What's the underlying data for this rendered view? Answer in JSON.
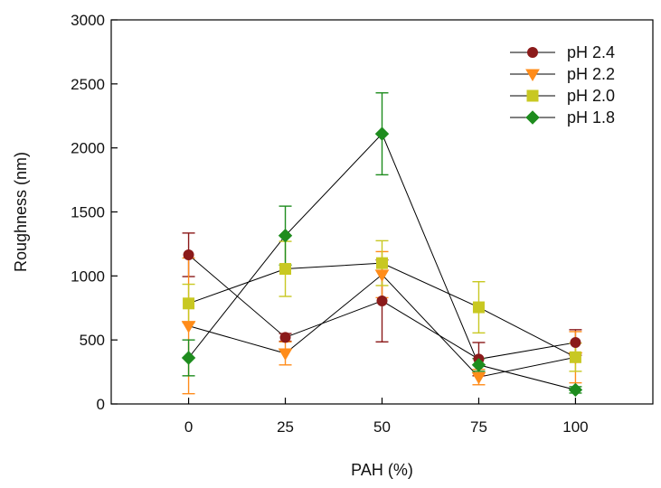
{
  "chart_data": {
    "type": "line",
    "title": "",
    "xlabel": "PAH (%)",
    "ylabel": "Roughness (nm)",
    "x": [
      0,
      25,
      50,
      75,
      100
    ],
    "xlim": [
      -20,
      120
    ],
    "ylim": [
      0,
      3000
    ],
    "xticks": [
      "0",
      "25",
      "50",
      "75",
      "100"
    ],
    "yticks": [
      "0",
      "500",
      "1000",
      "1500",
      "2000",
      "2500",
      "3000"
    ],
    "ytick_values": [
      0,
      500,
      1000,
      1500,
      2000,
      2500,
      3000
    ],
    "xtick_values": [
      0,
      25,
      50,
      75,
      100
    ],
    "grid": false,
    "legend_position": "top-right",
    "series": [
      {
        "name": "pH 2.4",
        "marker": "circle",
        "color": "#8B1A1A",
        "values": [
          1165,
          520,
          805,
          350,
          480
        ],
        "errors": [
          170,
          30,
          320,
          130,
          100
        ]
      },
      {
        "name": "pH 2.2",
        "marker": "triangle-down",
        "color": "#FF8C1A",
        "values": [
          610,
          395,
          1010,
          210,
          365
        ],
        "errors": [
          530,
          90,
          180,
          60,
          200
        ]
      },
      {
        "name": "pH 2.0",
        "marker": "square",
        "color": "#C8C822",
        "values": [
          785,
          1055,
          1100,
          755,
          365
        ],
        "errors": [
          150,
          215,
          175,
          200,
          110
        ]
      },
      {
        "name": "pH 1.8",
        "marker": "diamond",
        "color": "#1E8C1E",
        "values": [
          360,
          1315,
          2110,
          305,
          110
        ],
        "errors": [
          140,
          230,
          320,
          50,
          25
        ]
      }
    ]
  }
}
